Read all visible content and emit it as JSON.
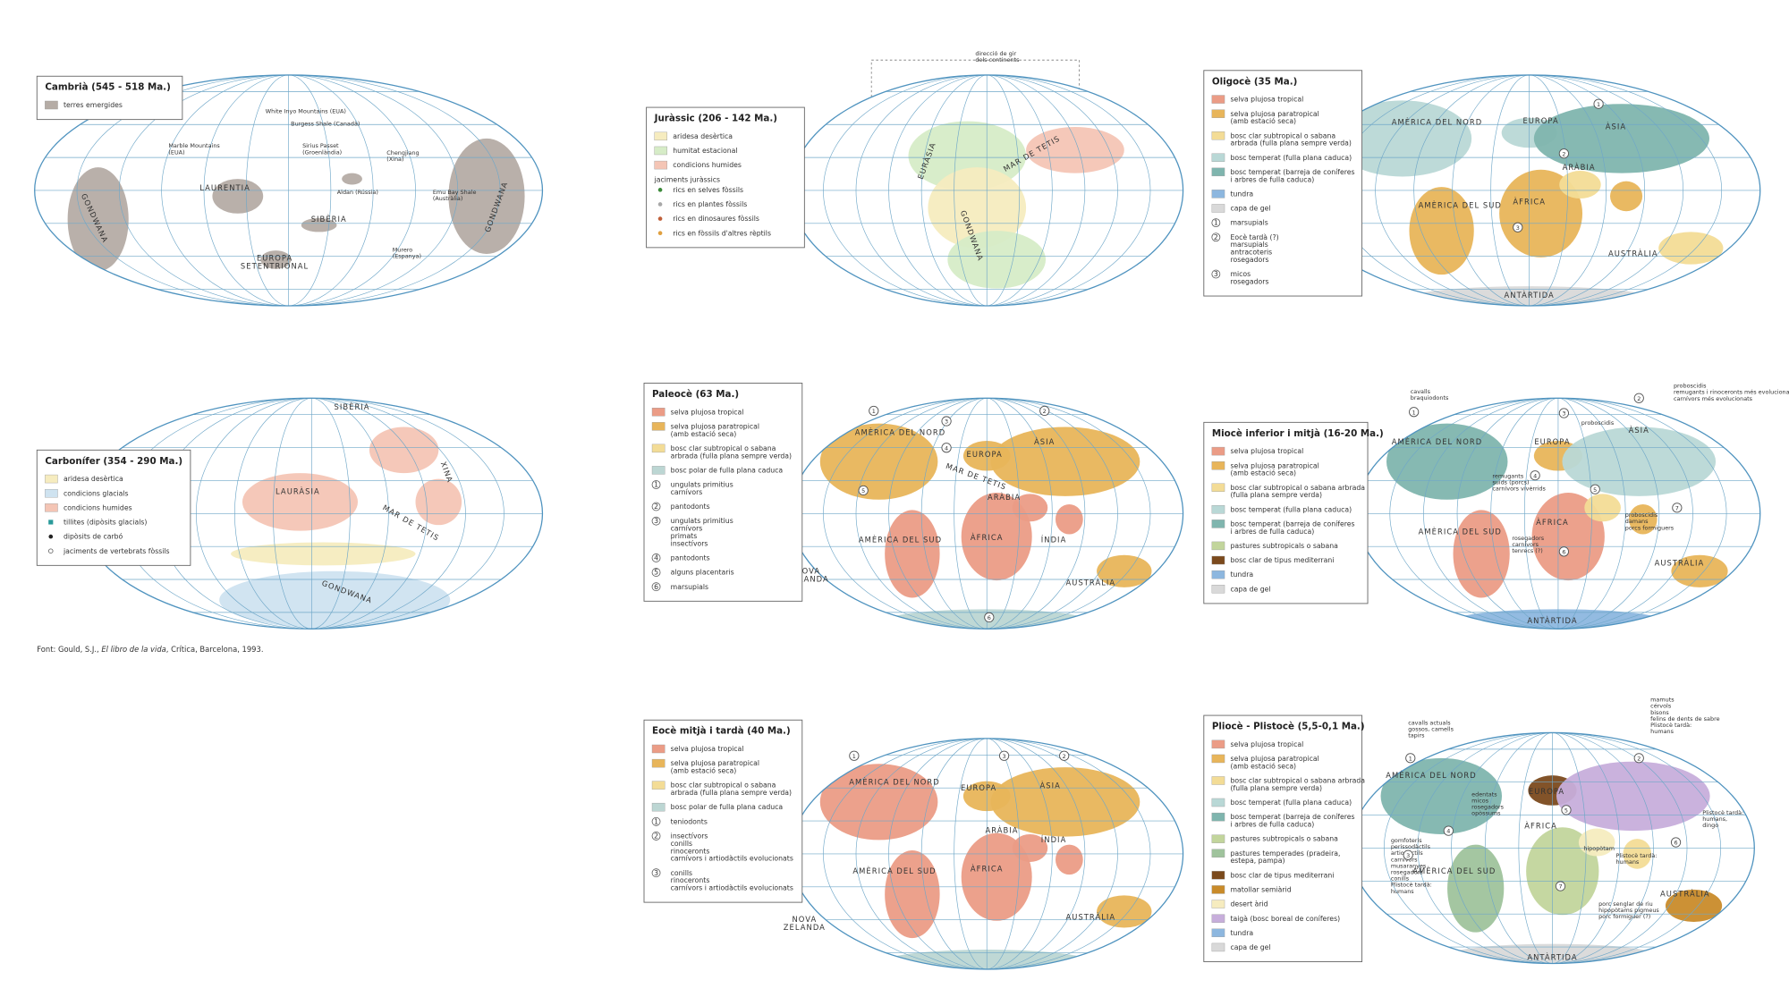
{
  "maps": [
    {
      "title": "Cambrià (545 - 518 Ma.)",
      "legend": [
        {
          "color": "#b5aca5",
          "label": [
            "terres emergides"
          ]
        }
      ],
      "labels": [
        [
          "White Inyo Mountains (EUA)"
        ],
        [
          "Burgess Shale (Canadà)"
        ],
        [
          "Marble Mountains",
          "(EUA)"
        ],
        [
          "Sirius Passet",
          "(Groenlàndia)"
        ],
        [
          "LAURENTIA"
        ],
        [
          "Chengjiang",
          "(Xina)"
        ],
        [
          "Aldan (Rússia)"
        ],
        [
          "Emu Bay Shale",
          "(Austràlia)"
        ],
        [
          "SIBÈRIA"
        ],
        [
          "EUROPA",
          "SETENTRIONAL"
        ],
        [
          "Murero",
          "(Espanya)"
        ],
        [
          "GONDWANA"
        ],
        [
          "GONDWANA"
        ]
      ],
      "markers": []
    },
    {
      "title": "Juràssic (206 - 142 Ma.)",
      "legend": [
        {
          "color": "#f6ecbf",
          "label": [
            "aridesa desèrtica"
          ]
        },
        {
          "color": "#d6ecc7",
          "label": [
            "humitat estacional"
          ]
        },
        {
          "color": "#f4c5b5",
          "label": [
            "condicions humides"
          ]
        },
        {
          "heading": "jaciments juràssics"
        },
        {
          "marker": "dot",
          "color": "#3c8a3a",
          "label": [
            "rics en selves fòssils"
          ]
        },
        {
          "marker": "dot",
          "color": "#a8a8a8",
          "label": [
            "rics en plantes fòssils"
          ]
        },
        {
          "marker": "dot",
          "color": "#c0603a",
          "label": [
            "rics en dinosaures fòssils"
          ]
        },
        {
          "marker": "dot",
          "color": "#e0a040",
          "label": [
            "rics en fòssils d'altres rèptils"
          ]
        }
      ],
      "labels": [
        [
          "direcció de gir",
          "dels continents"
        ],
        [
          "EURÀSIA"
        ],
        [
          "GONDWANA"
        ],
        [
          "MAR DE TETIS"
        ]
      ],
      "markers": []
    },
    {
      "title": "Oligocè (35 Ma.)",
      "legend": [
        {
          "color": "#eb9c86",
          "label": [
            "selva plujosa tropical"
          ]
        },
        {
          "color": "#e8b55a",
          "label": [
            "selva plujosa paratropical",
            "(amb estació seca)"
          ]
        },
        {
          "color": "#f3dc96",
          "label": [
            "bosc clar subtropical o sabana",
            "arbrada (fulla plana sempre verda)"
          ]
        },
        {
          "color": "#b9d8d6",
          "label": [
            "bosc temperat (fulla plana caduca)"
          ]
        },
        {
          "color": "#7fb5ae",
          "label": [
            "bosc temperat (barreja de coníferes",
            "i arbres de fulla caduca)"
          ]
        },
        {
          "color": "#8db7df",
          "label": [
            "tundra"
          ]
        },
        {
          "color": "#d9d9d9",
          "label": [
            "capa de gel"
          ]
        },
        {
          "num": "1",
          "label": [
            "marsupials"
          ]
        },
        {
          "num": "2",
          "label": [
            "Eocè tardà (?)",
            "marsupials",
            "antracoteris",
            "rosegadors"
          ]
        },
        {
          "num": "3",
          "label": [
            "micos",
            "rosegadors"
          ]
        }
      ],
      "labels": [
        [
          "AMÈRICA DEL NORD"
        ],
        [
          "EUROPA"
        ],
        [
          "ÀSIA"
        ],
        [
          "ARÀBIA"
        ],
        [
          "ÀFRICA"
        ],
        [
          "AMÈRICA DEL SUD"
        ],
        [
          "AUSTRÀLIA"
        ],
        [
          "ANTÀRTIDA"
        ]
      ],
      "markers": [
        "1",
        "2",
        "3"
      ]
    },
    {
      "title": "Carbonífer (354 - 290 Ma.)",
      "legend": [
        {
          "color": "#f6ecbf",
          "label": [
            "aridesa desèrtica"
          ]
        },
        {
          "color": "#cfe3f0",
          "label": [
            "condicions glacials"
          ]
        },
        {
          "color": "#f4c5b5",
          "label": [
            "condicions humides"
          ]
        },
        {
          "marker": "square",
          "color": "#2a9a9a",
          "label": [
            "tillites (dipòsits glacials)"
          ]
        },
        {
          "marker": "dot",
          "color": "#222222",
          "label": [
            "dipòsits de carbó"
          ]
        },
        {
          "marker": "ring",
          "color": "#555555",
          "label": [
            "jaciments de vertebrats fòssils"
          ]
        }
      ],
      "labels": [
        [
          "SIBÈRIA"
        ],
        [
          "LAURÀSIA"
        ],
        [
          "XINA"
        ],
        [
          "MAR DE TETIS"
        ],
        [
          "GONDWANA"
        ]
      ],
      "markers": []
    },
    {
      "title": "Paleocè (63 Ma.)",
      "legend": [
        {
          "color": "#eb9c86",
          "label": [
            "selva plujosa tropical"
          ]
        },
        {
          "color": "#e8b55a",
          "label": [
            "selva plujosa paratropical",
            "(amb estació seca)"
          ]
        },
        {
          "color": "#f3dc96",
          "label": [
            "bosc clar subtropical o sabana",
            "arbrada (fulla plana sempre verda)"
          ]
        },
        {
          "color": "#bcd6d3",
          "label": [
            "bosc polar de fulla plana caduca"
          ]
        },
        {
          "num": "1",
          "label": [
            "ungulats primitius",
            "carnívors"
          ]
        },
        {
          "num": "2",
          "label": [
            "pantodonts"
          ]
        },
        {
          "num": "3",
          "label": [
            "ungulats primitius",
            "carnívors",
            "primats",
            "insectívors"
          ]
        },
        {
          "num": "4",
          "label": [
            "pantodonts"
          ]
        },
        {
          "num": "5",
          "label": [
            "alguns placentaris"
          ]
        },
        {
          "num": "6",
          "label": [
            "marsupials"
          ]
        }
      ],
      "labels": [
        [
          "AMÈRICA DEL NORD"
        ],
        [
          "EUROPA"
        ],
        [
          "ÀSIA"
        ],
        [
          "ARÀBIA"
        ],
        [
          "MAR DE TETIS"
        ],
        [
          "ÀFRICA"
        ],
        [
          "ÍNDIA"
        ],
        [
          "AMÈRICA DEL SUD"
        ],
        [
          "NOVA",
          "ZELANDA"
        ],
        [
          "AUSTRÀLIA"
        ]
      ],
      "markers": [
        "1",
        "2",
        "3",
        "4",
        "5",
        "6"
      ]
    },
    {
      "title": "Miocè inferior i mitjà (16-20 Ma.)",
      "legend": [
        {
          "color": "#eb9c86",
          "label": [
            "selva plujosa tropical"
          ]
        },
        {
          "color": "#e8b55a",
          "label": [
            "selva plujosa paratropical",
            "(amb estació seca)"
          ]
        },
        {
          "color": "#f3dc96",
          "label": [
            "bosc clar subtropical o sabana arbrada",
            "(fulla plana sempre verda)"
          ]
        },
        {
          "color": "#b9d8d6",
          "label": [
            "bosc temperat (fulla plana caduca)"
          ]
        },
        {
          "color": "#7fb5ae",
          "label": [
            "bosc temperat (barreja de coníferes",
            "i arbres de fulla caduca)"
          ]
        },
        {
          "color": "#c2d59c",
          "label": [
            "pastures subtropicals o sabana"
          ]
        },
        {
          "color": "#7b4a1d",
          "label": [
            "bosc clar de tipus mediterrani"
          ]
        },
        {
          "color": "#8db7df",
          "label": [
            "tundra"
          ]
        },
        {
          "color": "#d9d9d9",
          "label": [
            "capa de gel"
          ]
        }
      ],
      "labels": [
        [
          "cavalls",
          "braquiodonts"
        ],
        [
          "proboscidis",
          "remugants i rinoceronts més evolucionats",
          "carnívors més evolucionats"
        ],
        [
          "AMÈRICA DEL NORD"
        ],
        [
          "EUROPA"
        ],
        [
          "ÀSIA"
        ],
        [
          "proboscidis"
        ],
        [
          "remugants",
          "suids (porcs)",
          "carnívors vivèrrids"
        ],
        [
          "ÀFRICA"
        ],
        [
          "proboscidis",
          "damans",
          "porcs formiguers"
        ],
        [
          "AMÈRICA DEL SUD"
        ],
        [
          "rosegadors",
          "carnívors",
          "tenrecs (?)"
        ],
        [
          "AUSTRÀLIA"
        ],
        [
          "ANTÀRTIDA"
        ]
      ],
      "markers": [
        "1",
        "2",
        "3",
        "4",
        "5",
        "6",
        "7"
      ]
    },
    {
      "title": "Eocè mitjà i tardà (40 Ma.)",
      "legend": [
        {
          "color": "#eb9c86",
          "label": [
            "selva plujosa tropical"
          ]
        },
        {
          "color": "#e8b55a",
          "label": [
            "selva plujosa paratropical",
            "(amb estació seca)"
          ]
        },
        {
          "color": "#f3dc96",
          "label": [
            "bosc clar subtropical o sabana",
            "arbrada (fulla plana sempre verda)"
          ]
        },
        {
          "color": "#bcd6d3",
          "label": [
            "bosc polar de fulla plana caduca"
          ]
        },
        {
          "num": "1",
          "label": [
            "teniodonts"
          ]
        },
        {
          "num": "2",
          "label": [
            "insectívors",
            "conills",
            "rinoceronts",
            "carnívors i artiodàctils evolucionats"
          ]
        },
        {
          "num": "3",
          "label": [
            "conills",
            "rinoceronts",
            "carnívors i artiodàctils evolucionats"
          ]
        }
      ],
      "labels": [
        [
          "AMÈRICA DEL NORD"
        ],
        [
          "EUROPA"
        ],
        [
          "ÀSIA"
        ],
        [
          "ARÀBIA"
        ],
        [
          "ÍNDIA"
        ],
        [
          "ÀFRICA"
        ],
        [
          "AMÈRICA DEL SUD"
        ],
        [
          "NOVA",
          "ZELANDA"
        ],
        [
          "AUSTRÀLIA"
        ]
      ],
      "markers": [
        "1",
        "2",
        "3"
      ]
    },
    {
      "title": "Pliocè - Plistocè (5,5-0,1 Ma.)",
      "legend": [
        {
          "color": "#eb9c86",
          "label": [
            "selva plujosa tropical"
          ]
        },
        {
          "color": "#e8b55a",
          "label": [
            "selva plujosa paratropical",
            "(amb estació seca)"
          ]
        },
        {
          "color": "#f3dc96",
          "label": [
            "bosc clar subtropical o sabana arbrada",
            "(fulla plana sempre verda)"
          ]
        },
        {
          "color": "#b9d8d6",
          "label": [
            "bosc temperat (fulla plana caduca)"
          ]
        },
        {
          "color": "#7fb5ae",
          "label": [
            "bosc temperat (barreja de coníferes",
            "i arbres de fulla caduca)"
          ]
        },
        {
          "color": "#c2d59c",
          "label": [
            "pastures subtropicals o sabana"
          ]
        },
        {
          "color": "#9fc39c",
          "label": [
            "pastures temperades (pradeira,",
            "estepa, pampa)"
          ]
        },
        {
          "color": "#7b4a1d",
          "label": [
            "bosc clar de tipus mediterrani"
          ]
        },
        {
          "color": "#c98b2a",
          "label": [
            "matollar semiàrid"
          ]
        },
        {
          "color": "#f6ecbf",
          "label": [
            "desert àrid"
          ]
        },
        {
          "color": "#c7aedb",
          "label": [
            "taigà (bosc boreal de coníferes)"
          ]
        },
        {
          "color": "#8db7df",
          "label": [
            "tundra"
          ]
        },
        {
          "color": "#d9d9d9",
          "label": [
            "capa de gel"
          ]
        }
      ],
      "labels": [
        [
          "cavalls actuals",
          "gossos, camells",
          "tapirs"
        ],
        [
          "mamuts",
          "cérvols",
          "bisons",
          "felins de dents de sabre",
          "Plistocè tardà:",
          "humans"
        ],
        [
          "AMÈRICA DEL NORD"
        ],
        [
          "EUROPA"
        ],
        [
          "edentats",
          "micos",
          "rosegadors",
          "opòssums"
        ],
        [
          "ÀFRICA"
        ],
        [
          "Plistocè tardà:",
          "humans,",
          "dingo"
        ],
        [
          "hipopòtam"
        ],
        [
          "Plistocè tardà:",
          "humans"
        ],
        [
          "AMÈRICA DEL SUD"
        ],
        [
          "gomfoteris",
          "perissodàctils",
          "artiodàctils",
          "carnívors",
          "musaranyes",
          "rosegadors",
          "conills",
          "Plistocè tardà:",
          "humans"
        ],
        [
          "porc senglar de riu",
          "hipopòtams pigmeus",
          "porc formiguer (?)"
        ],
        [
          "AUSTRÀLIA"
        ],
        [
          "ANTÀRTIDA"
        ]
      ],
      "markers": [
        "1",
        "2",
        "3",
        "4",
        "5",
        "6",
        "7"
      ]
    }
  ],
  "source": [
    "Font: Gould, S.J., ",
    "El libro de la vida",
    ", Crítica, Barcelona, 1993."
  ]
}
